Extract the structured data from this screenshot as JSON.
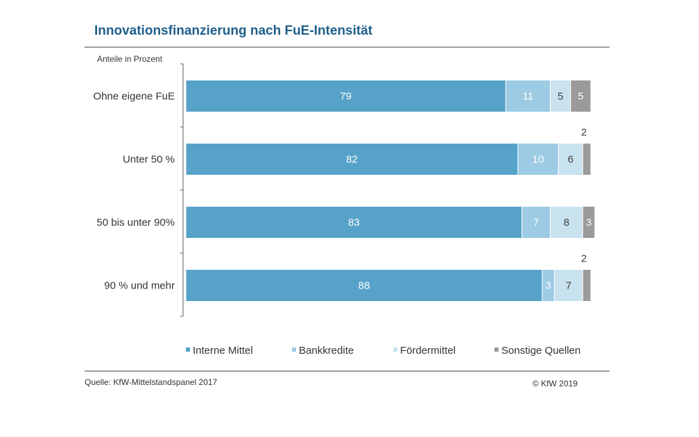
{
  "header": {
    "title": "Innovationsfinanzierung nach FuE-Intensität"
  },
  "footer": {
    "source": "Quelle:  KfW-Mittelstandspanel  2017",
    "copyright": "© KfW 2019"
  },
  "colors": {
    "title": "#1f5f8b",
    "rule": "#808080",
    "axis": "#595959"
  },
  "chart_data": {
    "type": "bar",
    "orientation": "horizontal",
    "stacked": true,
    "unit_label": "Anteile in Prozent",
    "categories": [
      "Ohne eigene FuE",
      "Unter 50 %",
      "50 bis unter 90%",
      "90 % und mehr"
    ],
    "series": [
      {
        "name": "Interne Mittel",
        "color": "#57a2c9",
        "label_color": "#ffffff",
        "values": [
          79,
          82,
          83,
          88
        ]
      },
      {
        "name": "Bankkredite",
        "color": "#9ccbe3",
        "label_color": "#ffffff",
        "values": [
          11,
          10,
          7,
          3
        ]
      },
      {
        "name": "Fördermittel",
        "color": "#c9e2ef",
        "label_color": "#404040",
        "values": [
          5,
          6,
          8,
          7
        ]
      },
      {
        "name": "Sonstige Quellen",
        "color": "#9a9a9a",
        "label_color": "#ffffff",
        "values": [
          5,
          2,
          3,
          2
        ]
      }
    ],
    "xlim": [
      0,
      100
    ],
    "grid": false,
    "legend_position": "bottom"
  }
}
